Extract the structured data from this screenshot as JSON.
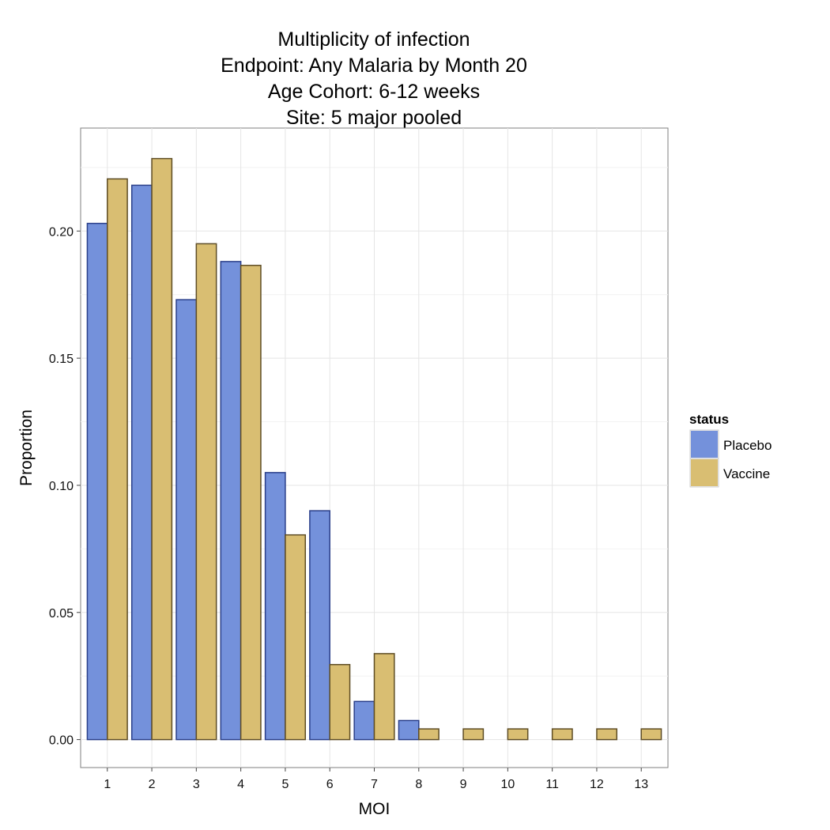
{
  "chart_data": {
    "type": "bar",
    "title_lines": [
      "Multiplicity of infection",
      "Endpoint: Any Malaria by Month 20",
      "Age Cohort: 6-12 weeks",
      "Site: 5 major pooled"
    ],
    "xlabel": "MOI",
    "ylabel": "Proportion",
    "categories": [
      "1",
      "2",
      "3",
      "4",
      "5",
      "6",
      "7",
      "8",
      "9",
      "10",
      "11",
      "12",
      "13"
    ],
    "series": [
      {
        "name": "Placebo",
        "fill": "#7491db",
        "stroke": "#2a3f8a",
        "values": [
          0.203,
          0.218,
          0.173,
          0.188,
          0.105,
          0.09,
          0.015,
          0.0075,
          null,
          null,
          null,
          null,
          null
        ]
      },
      {
        "name": "Vaccine",
        "fill": "#d9be72",
        "stroke": "#5e4d25",
        "values": [
          0.2205,
          0.2285,
          0.195,
          0.1865,
          0.0805,
          0.0295,
          0.0338,
          0.0042,
          0.0042,
          0.0042,
          0.0042,
          0.0042,
          0.0042
        ]
      }
    ],
    "ylim": [
      -0.011,
      0.2405
    ],
    "yticks": [
      "0.00",
      "0.05",
      "0.10",
      "0.15",
      "0.20"
    ],
    "ytick_values": [
      0,
      0.05,
      0.1,
      0.15,
      0.2
    ],
    "grid": true,
    "legend": {
      "title": "status",
      "position": "right",
      "entries": [
        "Placebo",
        "Vaccine"
      ]
    }
  }
}
